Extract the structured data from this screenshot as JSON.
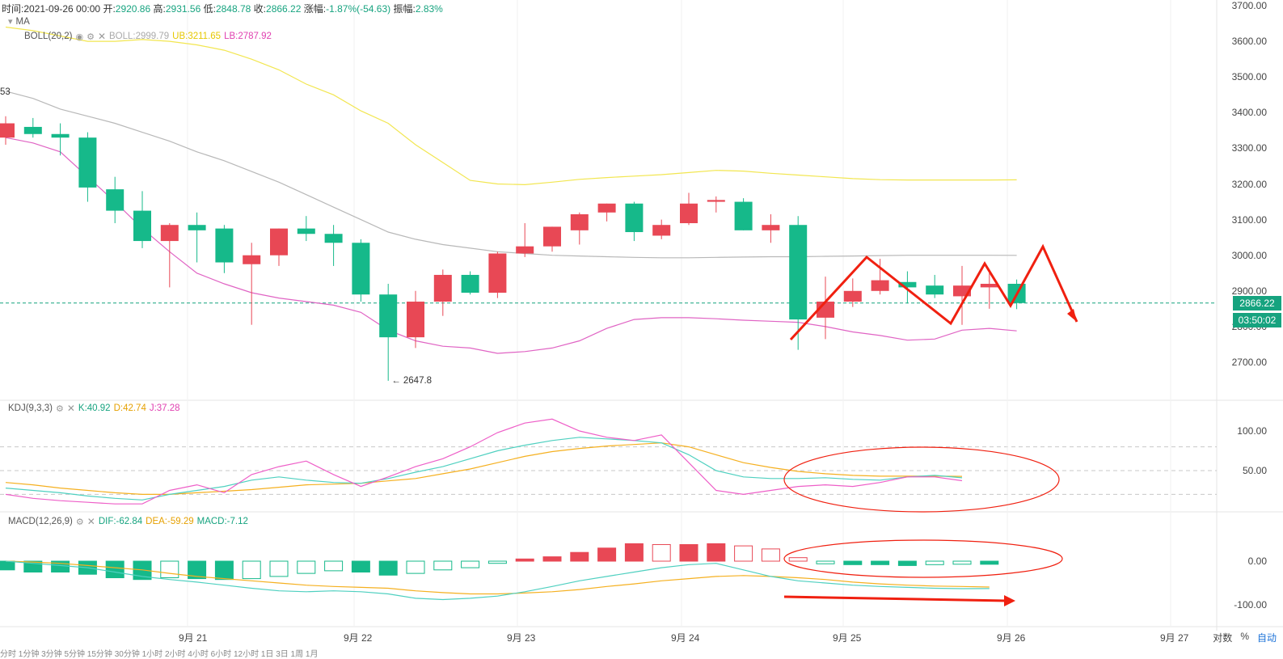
{
  "ohlc_bar": {
    "time_label": "时间:",
    "time": "2021-09-26 00:00",
    "open_label": "开:",
    "open": "2920.86",
    "high_label": "高:",
    "high": "2931.56",
    "low_label": "低:",
    "low": "2848.78",
    "close_label": "收:",
    "close": "2866.22",
    "change_label": "涨幅:",
    "change": "-1.87%(-54.63)",
    "amp_label": "振幅:",
    "amp": "2.83%"
  },
  "ma_legend": {
    "name": "MA"
  },
  "boll_legend": {
    "name": "BOLL(20,2)",
    "boll": "BOLL:2999.79",
    "ub": "UB:3211.65",
    "lb": "LB:2787.92"
  },
  "kdj_legend": {
    "name": "KDJ(9,3,3)",
    "k": "K:40.92",
    "d": "D:42.74",
    "j": "J:37.28"
  },
  "macd_legend": {
    "name": "MACD(12,26,9)",
    "dif": "DIF:-62.84",
    "dea": "DEA:-59.29",
    "macd": "MACD:-7.12"
  },
  "price_axis": [
    "3700.00",
    "3600.00",
    "3500.00",
    "3400.00",
    "3300.00",
    "3200.00",
    "3100.00",
    "3000.00",
    "2900.00",
    "2800.00",
    "2700.00"
  ],
  "kdj_axis": [
    "100.00",
    "50.00"
  ],
  "macd_axis": [
    "0.00",
    "-100.00"
  ],
  "x_axis": [
    "9月 21",
    "9月 22",
    "9月 23",
    "9月 24",
    "9月 25",
    "9月 26",
    "9月 27"
  ],
  "last_price": "2866.22",
  "countdown": "03:50:02",
  "low_annotation": "← 2647.8",
  "left_ma_value": "53",
  "bottom_bar": {
    "log": "对数",
    "pct": "%",
    "auto": "自动"
  },
  "timeframes": "分时 1分钟 3分钟 5分钟 15分钟 30分钟 1小时 2小时 4小时 6小时 12小时 1日 3日 1周 1月",
  "colors": {
    "up": "#e84855",
    "down": "#16b98a",
    "ma": "#b8b8b8",
    "ub": "#f2e650",
    "lb": "#e064c4",
    "k": "#4fd0c0",
    "d": "#f5b020",
    "j": "#ee5fc8",
    "arrow": "#f02010"
  },
  "chart_data": {
    "type": "candlestick",
    "candles": [
      {
        "o": 3330,
        "h": 3390,
        "l": 3310,
        "c": 3370
      },
      {
        "o": 3360,
        "h": 3385,
        "l": 3330,
        "c": 3340
      },
      {
        "o": 3340,
        "h": 3370,
        "l": 3280,
        "c": 3330
      },
      {
        "o": 3330,
        "h": 3345,
        "l": 3150,
        "c": 3190
      },
      {
        "o": 3185,
        "h": 3220,
        "l": 3090,
        "c": 3125
      },
      {
        "o": 3125,
        "h": 3180,
        "l": 3020,
        "c": 3040
      },
      {
        "o": 3040,
        "h": 3090,
        "l": 2910,
        "c": 3085
      },
      {
        "o": 3085,
        "h": 3120,
        "l": 2980,
        "c": 3070
      },
      {
        "o": 3075,
        "h": 3085,
        "l": 2950,
        "c": 2980
      },
      {
        "o": 2975,
        "h": 3035,
        "l": 2805,
        "c": 3000
      },
      {
        "o": 3000,
        "h": 3075,
        "l": 2970,
        "c": 3075
      },
      {
        "o": 3075,
        "h": 3110,
        "l": 3040,
        "c": 3060
      },
      {
        "o": 3060,
        "h": 3085,
        "l": 2970,
        "c": 3035
      },
      {
        "o": 3035,
        "h": 3045,
        "l": 2870,
        "c": 2890
      },
      {
        "o": 2890,
        "h": 2920,
        "l": 2648,
        "c": 2770
      },
      {
        "o": 2770,
        "h": 2900,
        "l": 2740,
        "c": 2870
      },
      {
        "o": 2870,
        "h": 2960,
        "l": 2830,
        "c": 2945
      },
      {
        "o": 2945,
        "h": 2955,
        "l": 2890,
        "c": 2895
      },
      {
        "o": 2895,
        "h": 3010,
        "l": 2880,
        "c": 3005
      },
      {
        "o": 3005,
        "h": 3090,
        "l": 2995,
        "c": 3025
      },
      {
        "o": 3025,
        "h": 3080,
        "l": 3010,
        "c": 3080
      },
      {
        "o": 3070,
        "h": 3120,
        "l": 3030,
        "c": 3115
      },
      {
        "o": 3120,
        "h": 3145,
        "l": 3095,
        "c": 3145
      },
      {
        "o": 3145,
        "h": 3150,
        "l": 3040,
        "c": 3065
      },
      {
        "o": 3055,
        "h": 3100,
        "l": 3045,
        "c": 3085
      },
      {
        "o": 3090,
        "h": 3175,
        "l": 3085,
        "c": 3145
      },
      {
        "o": 3150,
        "h": 3165,
        "l": 3120,
        "c": 3155
      },
      {
        "o": 3150,
        "h": 3160,
        "l": 3070,
        "c": 3070
      },
      {
        "o": 3070,
        "h": 3115,
        "l": 3035,
        "c": 3085
      },
      {
        "o": 3085,
        "h": 3110,
        "l": 2735,
        "c": 2820
      },
      {
        "o": 2825,
        "h": 2940,
        "l": 2765,
        "c": 2870
      },
      {
        "o": 2870,
        "h": 2935,
        "l": 2855,
        "c": 2900
      },
      {
        "o": 2900,
        "h": 2990,
        "l": 2890,
        "c": 2930
      },
      {
        "o": 2925,
        "h": 2955,
        "l": 2865,
        "c": 2910
      },
      {
        "o": 2915,
        "h": 2945,
        "l": 2880,
        "c": 2890
      },
      {
        "o": 2885,
        "h": 2970,
        "l": 2805,
        "c": 2915
      },
      {
        "o": 2910,
        "h": 2950,
        "l": 2850,
        "c": 2920
      },
      {
        "o": 2920,
        "h": 2932,
        "l": 2849,
        "c": 2866
      }
    ],
    "ma_line": [
      3460,
      3440,
      3410,
      3390,
      3370,
      3345,
      3320,
      3290,
      3265,
      3235,
      3205,
      3170,
      3135,
      3100,
      3065,
      3045,
      3030,
      3020,
      3010,
      3005,
      3000,
      2998,
      2996,
      2994,
      2993,
      2993,
      2994,
      2995,
      2996,
      2996,
      2997,
      2998,
      2999,
      3000,
      3000,
      3000,
      3000,
      2999.79
    ],
    "ub_line": [
      3640,
      3630,
      3615,
      3600,
      3600,
      3605,
      3600,
      3590,
      3575,
      3550,
      3520,
      3480,
      3450,
      3405,
      3370,
      3310,
      3260,
      3210,
      3200,
      3198,
      3205,
      3213,
      3218,
      3222,
      3226,
      3232,
      3238,
      3236,
      3230,
      3225,
      3220,
      3215,
      3212,
      3211,
      3211,
      3211,
      3211,
      3211.65
    ],
    "lb_line": [
      3330,
      3315,
      3290,
      3220,
      3150,
      3075,
      3010,
      2950,
      2920,
      2895,
      2880,
      2870,
      2860,
      2840,
      2790,
      2760,
      2745,
      2740,
      2725,
      2730,
      2740,
      2760,
      2795,
      2820,
      2825,
      2825,
      2822,
      2818,
      2815,
      2812,
      2800,
      2785,
      2775,
      2762,
      2765,
      2790,
      2795,
      2787.92
    ],
    "kdj_k": [
      28,
      25,
      22,
      18,
      15,
      13,
      20,
      25,
      30,
      38,
      42,
      38,
      35,
      34,
      40,
      48,
      55,
      65,
      75,
      82,
      88,
      92,
      90,
      88,
      85,
      70,
      50,
      42,
      40,
      40,
      41,
      39,
      38,
      42,
      44,
      40.92
    ],
    "kdj_d": [
      35,
      32,
      28,
      25,
      22,
      20,
      20,
      22,
      24,
      26,
      29,
      32,
      33,
      34,
      37,
      40,
      46,
      52,
      60,
      68,
      74,
      78,
      81,
      83,
      85,
      80,
      70,
      60,
      54,
      49,
      46,
      44,
      43,
      43,
      43,
      42.74
    ],
    "kdj_j": [
      20,
      15,
      12,
      10,
      8,
      8,
      25,
      32,
      22,
      45,
      55,
      62,
      45,
      30,
      42,
      55,
      65,
      80,
      98,
      110,
      115,
      100,
      92,
      88,
      95,
      60,
      25,
      20,
      25,
      30,
      32,
      30,
      35,
      42,
      42,
      37.28
    ],
    "macd_hist": [
      -20,
      -25,
      -25,
      -30,
      -38,
      -42,
      -38,
      -40,
      -42,
      -40,
      -35,
      -28,
      -22,
      -25,
      -32,
      -28,
      -20,
      -15,
      -5,
      5,
      10,
      20,
      30,
      40,
      38,
      38,
      40,
      35,
      28,
      8,
      -6,
      -8,
      -8,
      -10,
      -8,
      -7,
      -7.12
    ],
    "macd_dif": [
      0,
      -5,
      -10,
      -15,
      -25,
      -35,
      -42,
      -48,
      -55,
      -62,
      -68,
      -70,
      -68,
      -70,
      -75,
      -85,
      -88,
      -85,
      -80,
      -70,
      -58,
      -45,
      -35,
      -25,
      -15,
      -8,
      -5,
      -20,
      -35,
      -45,
      -50,
      -55,
      -58,
      -60,
      -62,
      -63,
      -62.84
    ],
    "macd_dea": [
      0,
      -2,
      -5,
      -10,
      -15,
      -20,
      -28,
      -35,
      -40,
      -45,
      -50,
      -55,
      -58,
      -60,
      -62,
      -68,
      -72,
      -75,
      -75,
      -73,
      -70,
      -65,
      -58,
      -52,
      -45,
      -40,
      -35,
      -33,
      -35,
      -38,
      -42,
      -48,
      -52,
      -55,
      -57,
      -58,
      -59.29
    ],
    "price_ylim": [
      2620,
      3740
    ],
    "kdj_ylim": [
      0,
      130
    ],
    "macd_ylim": [
      -120,
      80
    ]
  }
}
